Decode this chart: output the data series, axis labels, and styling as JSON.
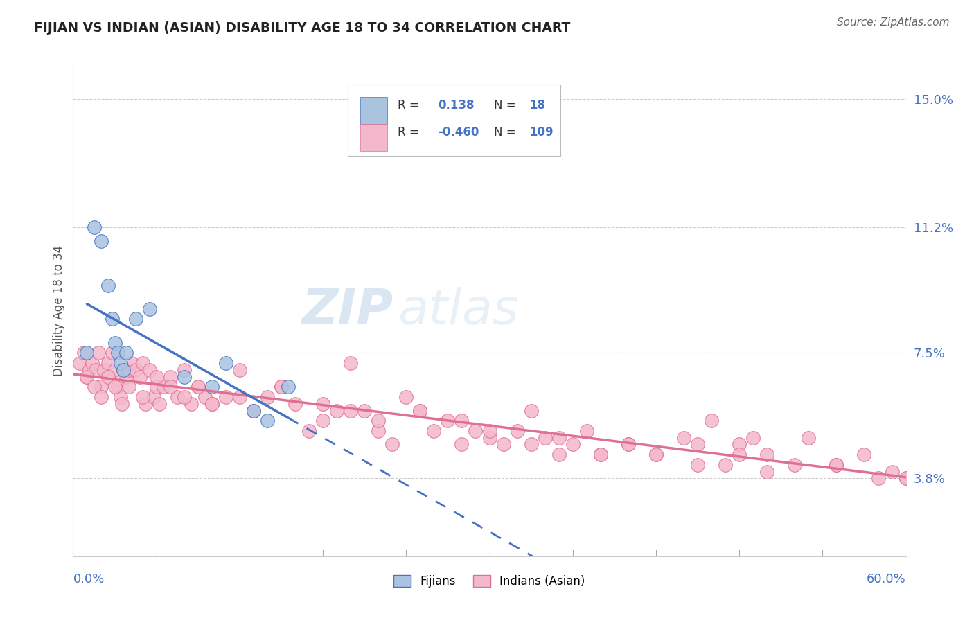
{
  "title": "FIJIAN VS INDIAN (ASIAN) DISABILITY AGE 18 TO 34 CORRELATION CHART",
  "source": "Source: ZipAtlas.com",
  "ylabel": "Disability Age 18 to 34",
  "ylabel_right_ticks": [
    3.8,
    7.5,
    11.2,
    15.0
  ],
  "ylabel_right_labels": [
    "3.8%",
    "7.5%",
    "11.2%",
    "15.0%"
  ],
  "xmin": 0.0,
  "xmax": 60.0,
  "ymin": 1.5,
  "ymax": 16.0,
  "fijian_color": "#aac4e0",
  "fijian_edge_color": "#4472c4",
  "indian_color": "#f4b8cc",
  "indian_edge_color": "#e07090",
  "trend_fijian_color": "#4472c4",
  "trend_indian_color": "#e07090",
  "legend_R_fijian": "0.138",
  "legend_N_fijian": "18",
  "legend_R_indian": "-0.460",
  "legend_N_indian": "109",
  "fijian_x": [
    1.0,
    1.5,
    2.0,
    2.5,
    2.8,
    3.0,
    3.2,
    3.4,
    3.6,
    3.8,
    4.5,
    5.5,
    8.0,
    10.0,
    11.0,
    13.0,
    14.0,
    15.5
  ],
  "fijian_y": [
    7.5,
    11.2,
    10.8,
    9.5,
    8.5,
    7.8,
    7.5,
    7.2,
    7.0,
    7.5,
    8.5,
    8.8,
    6.8,
    6.5,
    7.2,
    5.8,
    5.5,
    6.5
  ],
  "indian_x": [
    0.5,
    0.8,
    1.0,
    1.2,
    1.4,
    1.6,
    1.8,
    2.0,
    2.2,
    2.5,
    2.8,
    3.0,
    3.2,
    3.4,
    3.6,
    3.8,
    4.0,
    4.2,
    4.5,
    4.8,
    5.0,
    5.2,
    5.5,
    5.8,
    6.0,
    6.2,
    6.5,
    7.0,
    7.5,
    8.0,
    8.5,
    9.0,
    9.5,
    10.0,
    11.0,
    12.0,
    13.0,
    14.0,
    15.0,
    16.0,
    17.0,
    18.0,
    19.0,
    20.0,
    21.0,
    22.0,
    23.0,
    24.0,
    25.0,
    26.0,
    27.0,
    28.0,
    29.0,
    30.0,
    31.0,
    32.0,
    33.0,
    34.0,
    35.0,
    36.0,
    37.0,
    38.0,
    40.0,
    42.0,
    44.0,
    45.0,
    46.0,
    47.0,
    48.0,
    49.0,
    50.0,
    52.0,
    53.0,
    55.0,
    57.0,
    58.0,
    59.0,
    60.0,
    1.0,
    1.5,
    2.0,
    2.5,
    3.0,
    3.5,
    4.0,
    5.0,
    6.0,
    7.0,
    8.0,
    9.0,
    10.0,
    12.0,
    15.0,
    18.0,
    20.0,
    22.0,
    25.0,
    28.0,
    30.0,
    33.0,
    35.0,
    38.0,
    40.0,
    42.0,
    45.0,
    48.0,
    50.0,
    55.0,
    60.0
  ],
  "indian_y": [
    7.2,
    7.5,
    6.8,
    7.0,
    7.2,
    7.0,
    7.5,
    6.5,
    7.0,
    7.2,
    7.5,
    7.0,
    6.5,
    6.2,
    7.0,
    6.8,
    7.0,
    7.2,
    7.0,
    6.8,
    7.2,
    6.0,
    7.0,
    6.2,
    6.5,
    6.0,
    6.5,
    6.8,
    6.2,
    7.0,
    6.0,
    6.5,
    6.2,
    6.0,
    6.2,
    7.0,
    5.8,
    6.2,
    6.5,
    6.0,
    5.2,
    5.5,
    5.8,
    7.2,
    5.8,
    5.2,
    4.8,
    6.2,
    5.8,
    5.2,
    5.5,
    4.8,
    5.2,
    5.0,
    4.8,
    5.2,
    5.8,
    5.0,
    4.5,
    4.8,
    5.2,
    4.5,
    4.8,
    4.5,
    5.0,
    4.8,
    5.5,
    4.2,
    4.8,
    5.0,
    4.5,
    4.2,
    5.0,
    4.2,
    4.5,
    3.8,
    4.0,
    3.8,
    6.8,
    6.5,
    6.2,
    6.8,
    6.5,
    6.0,
    6.5,
    6.2,
    6.8,
    6.5,
    6.2,
    6.5,
    6.0,
    6.2,
    6.5,
    6.0,
    5.8,
    5.5,
    5.8,
    5.5,
    5.2,
    4.8,
    5.0,
    4.5,
    4.8,
    4.5,
    4.2,
    4.5,
    4.0,
    4.2,
    3.8
  ],
  "watermark_zip": "ZIP",
  "watermark_atlas": "atlas",
  "background_color": "#ffffff"
}
